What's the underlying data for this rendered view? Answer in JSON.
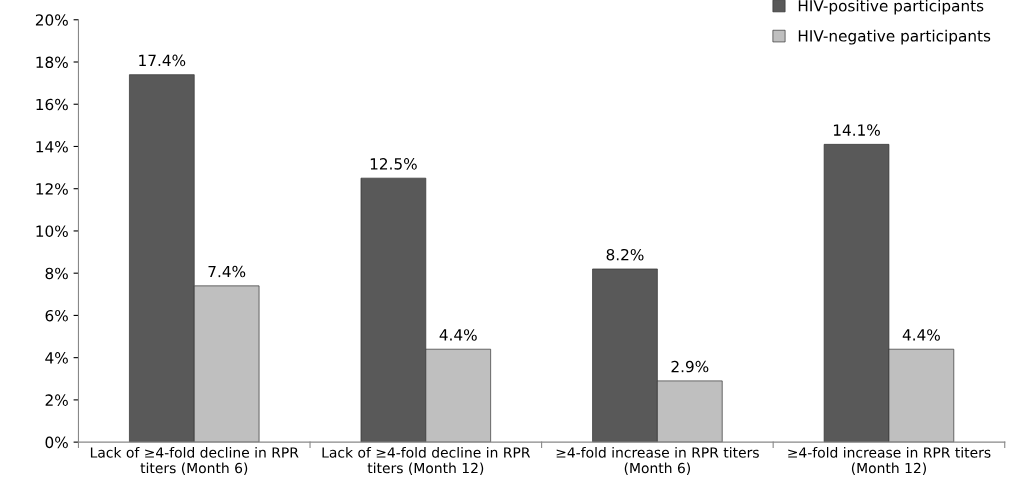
{
  "chart_data": {
    "type": "bar",
    "categories": [
      "Lack of ≥4-fold decline in RPR\ntiters (Month 6)",
      "Lack of ≥4-fold decline in RPR\ntiters (Month 12)",
      "≥4-fold increase in RPR titers\n(Month 6)",
      "≥4-fold increase in RPR titers\n(Month 12)"
    ],
    "series": [
      {
        "name": "HIV-positive participants",
        "color": "#595959",
        "values": [
          17.4,
          12.5,
          8.2,
          14.1
        ],
        "value_labels": [
          "17.4%",
          "12.5%",
          "8.2%",
          "14.1%"
        ]
      },
      {
        "name": "HIV-negative participants",
        "color": "#bfbfbf",
        "values": [
          7.4,
          4.4,
          2.9,
          4.4
        ],
        "value_labels": [
          "7.4%",
          "4.4%",
          "2.9%",
          "4.4%"
        ]
      }
    ],
    "ylim": [
      0,
      20
    ],
    "yticks": [
      {
        "value": 0,
        "label": "0%"
      },
      {
        "value": 2,
        "label": "2%"
      },
      {
        "value": 4,
        "label": "4%"
      },
      {
        "value": 6,
        "label": "6%"
      },
      {
        "value": 8,
        "label": "8%"
      },
      {
        "value": 10,
        "label": "10%"
      },
      {
        "value": 12,
        "label": "12%"
      },
      {
        "value": 14,
        "label": "14%"
      },
      {
        "value": 16,
        "label": "16%"
      },
      {
        "value": 18,
        "label": "18%"
      },
      {
        "value": 20,
        "label": "20%"
      }
    ],
    "grid": false,
    "legend": "top right"
  }
}
